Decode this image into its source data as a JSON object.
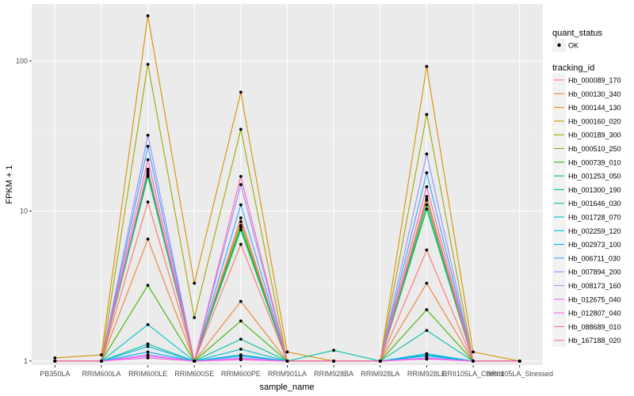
{
  "chart_data": {
    "type": "line",
    "title": "",
    "xlabel": "sample_name",
    "ylabel": "FPKM + 1",
    "y_scale": "log10",
    "ylim": [
      0.94,
      240
    ],
    "y_ticks": [
      1,
      10,
      100
    ],
    "grid": true,
    "legend_position": "right",
    "shape_legend": {
      "title": "quant_status",
      "entries": [
        "OK"
      ]
    },
    "color_legend_title": "tracking_id",
    "categories": [
      "PB350LA",
      "RRIM600LA",
      "RRIM600LE",
      "RRIM600SE",
      "RRIM600PE",
      "RRIM901LA",
      "RRIM928BA",
      "RRIM928LA",
      "RRIM928LE",
      "RRII105LA_Control",
      "RRII105LA_Stressed"
    ],
    "series": [
      {
        "name": "Hb_000089_170",
        "color": "#F8766D",
        "values": [
          1.0,
          1.0,
          11.5,
          1.0,
          6.0,
          1.0,
          1.0,
          1.0,
          5.5,
          1.0,
          1.0
        ]
      },
      {
        "name": "Hb_000130_340",
        "color": "#EA8331",
        "values": [
          1.0,
          1.0,
          6.5,
          1.0,
          2.5,
          1.0,
          1.0,
          1.0,
          3.3,
          1.0,
          1.0
        ]
      },
      {
        "name": "Hb_000144_130",
        "color": "#D89000",
        "values": [
          1.05,
          1.1,
          200,
          3.3,
          62,
          1.15,
          1.0,
          1.0,
          92,
          1.15,
          1.0
        ]
      },
      {
        "name": "Hb_000160_020",
        "color": "#C09B00",
        "values": [
          1.0,
          1.0,
          18.5,
          1.0,
          8.5,
          1.0,
          1.0,
          1.0,
          12.5,
          1.0,
          1.0
        ]
      },
      {
        "name": "Hb_000189_300",
        "color": "#A3A500",
        "values": [
          1.0,
          1.0,
          95,
          1.95,
          35,
          1.0,
          1.0,
          1.0,
          44,
          1.0,
          1.0
        ]
      },
      {
        "name": "Hb_000510_250",
        "color": "#7CAE00",
        "values": [
          1.0,
          1.0,
          17.5,
          1.0,
          8.0,
          1.0,
          1.0,
          1.0,
          11.8,
          1.0,
          1.0
        ]
      },
      {
        "name": "Hb_000739_010",
        "color": "#39B600",
        "values": [
          1.0,
          1.0,
          3.2,
          1.0,
          1.85,
          1.0,
          1.0,
          1.0,
          2.2,
          1.0,
          1.0
        ]
      },
      {
        "name": "Hb_001253_050",
        "color": "#00BB4E",
        "values": [
          1.0,
          1.0,
          18.0,
          1.0,
          7.8,
          1.0,
          1.0,
          1.0,
          10.3,
          1.0,
          1.0
        ]
      },
      {
        "name": "Hb_001300_190",
        "color": "#00BF7D",
        "values": [
          1.0,
          1.0,
          17.0,
          1.0,
          7.5,
          1.0,
          1.0,
          1.0,
          11.0,
          1.0,
          1.0
        ]
      },
      {
        "name": "Hb_001646_030",
        "color": "#00C1A3",
        "values": [
          1.0,
          1.0,
          1.3,
          1.0,
          1.4,
          1.0,
          1.18,
          1.0,
          1.6,
          1.0,
          1.0
        ]
      },
      {
        "name": "Hb_001728_070",
        "color": "#00BFC4",
        "values": [
          1.0,
          1.0,
          1.75,
          1.0,
          1.2,
          1.0,
          1.0,
          1.0,
          1.1,
          1.0,
          1.0
        ]
      },
      {
        "name": "Hb_002259_120",
        "color": "#00BAE0",
        "values": [
          1.0,
          1.0,
          1.25,
          1.0,
          1.1,
          1.0,
          1.0,
          1.0,
          1.12,
          1.0,
          1.0
        ]
      },
      {
        "name": "Hb_002973_100",
        "color": "#00B0F6",
        "values": [
          1.0,
          1.0,
          1.15,
          1.0,
          1.08,
          1.0,
          1.0,
          1.0,
          1.08,
          1.0,
          1.0
        ]
      },
      {
        "name": "Hb_006711_030",
        "color": "#35A2FF",
        "values": [
          1.0,
          1.0,
          27,
          1.0,
          11,
          1.0,
          1.0,
          1.0,
          18,
          1.0,
          1.0
        ]
      },
      {
        "name": "Hb_007894_200",
        "color": "#9590FF",
        "values": [
          1.0,
          1.0,
          32,
          1.0,
          15,
          1.0,
          1.0,
          1.0,
          24,
          1.0,
          1.0
        ]
      },
      {
        "name": "Hb_008173_160",
        "color": "#C77CFF",
        "values": [
          1.0,
          1.0,
          1.1,
          1.0,
          1.05,
          1.0,
          1.0,
          1.0,
          1.05,
          1.0,
          1.0
        ]
      },
      {
        "name": "Hb_012675_040",
        "color": "#E76BF3",
        "values": [
          1.0,
          1.0,
          1.08,
          1.0,
          1.03,
          1.0,
          1.0,
          1.0,
          1.04,
          1.0,
          1.0
        ]
      },
      {
        "name": "Hb_012807_040",
        "color": "#FA62DB",
        "values": [
          1.0,
          1.0,
          1.05,
          1.0,
          1.02,
          1.0,
          1.0,
          1.0,
          1.03,
          1.0,
          1.0
        ]
      },
      {
        "name": "Hb_088689_010",
        "color": "#FF62BC",
        "values": [
          1.0,
          1.0,
          22,
          1.0,
          17,
          1.0,
          1.0,
          1.0,
          14.5,
          1.0,
          1.0
        ]
      },
      {
        "name": "Hb_167188_020",
        "color": "#FF6C91",
        "values": [
          1.0,
          1.0,
          19,
          1.0,
          9.0,
          1.0,
          1.0,
          1.0,
          12.0,
          1.0,
          1.0
        ]
      }
    ]
  }
}
